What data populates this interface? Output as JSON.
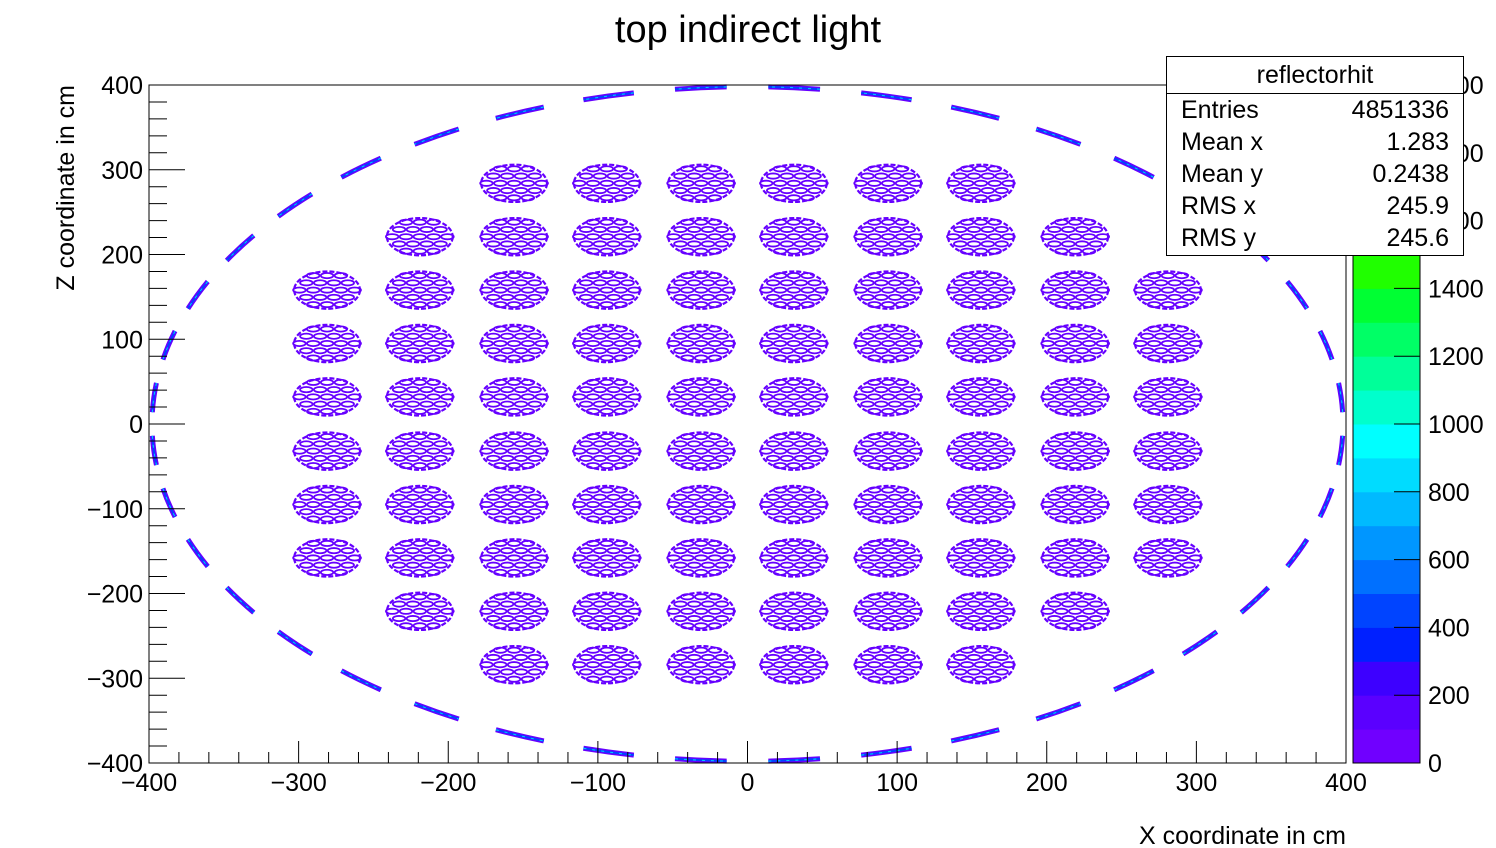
{
  "chart_data": {
    "type": "heatmap",
    "title": "top indirect light",
    "xlabel": "X coordinate in cm",
    "ylabel": "Z coordinate in cm",
    "xlim": [
      -400,
      400
    ],
    "ylim": [
      -400,
      400
    ],
    "x_ticks": [
      -400,
      -300,
      -200,
      -100,
      0,
      100,
      200,
      300,
      400
    ],
    "y_ticks": [
      -400,
      -300,
      -200,
      -100,
      0,
      100,
      200,
      300,
      400
    ],
    "x_tick_labels": [
      "−400",
      "−300",
      "−200",
      "−100",
      "0",
      "100",
      "200",
      "300",
      "400"
    ],
    "y_tick_labels": [
      "−400",
      "−300",
      "−200",
      "−100",
      "0",
      "100",
      "200",
      "300",
      "400"
    ],
    "pmt_rows": [
      {
        "z": 284,
        "x": [
          -156,
          -94,
          -31,
          31,
          94,
          156
        ]
      },
      {
        "z": 221,
        "x": [
          -219,
          -156,
          -94,
          -31,
          31,
          94,
          156,
          219
        ]
      },
      {
        "z": 158,
        "x": [
          -281,
          -219,
          -156,
          -94,
          -31,
          31,
          94,
          156,
          219,
          281
        ]
      },
      {
        "z": 95,
        "x": [
          -281,
          -219,
          -156,
          -94,
          -31,
          31,
          94,
          156,
          219,
          281
        ]
      },
      {
        "z": 32,
        "x": [
          -281,
          -219,
          -156,
          -94,
          -31,
          31,
          94,
          156,
          219,
          281
        ]
      },
      {
        "z": -32,
        "x": [
          -281,
          -219,
          -156,
          -94,
          -31,
          31,
          94,
          156,
          219,
          281
        ]
      },
      {
        "z": -95,
        "x": [
          -281,
          -219,
          -156,
          -94,
          -31,
          31,
          94,
          156,
          219,
          281
        ]
      },
      {
        "z": -158,
        "x": [
          -281,
          -219,
          -156,
          -94,
          -31,
          31,
          94,
          156,
          219,
          281
        ]
      },
      {
        "z": -221,
        "x": [
          -219,
          -156,
          -94,
          -31,
          31,
          94,
          156,
          219
        ]
      },
      {
        "z": -284,
        "x": [
          -156,
          -94,
          -31,
          31,
          94,
          156
        ]
      }
    ],
    "pmt_diameter_cm": 44,
    "rim_radius_cm": 398,
    "rim_segments": 40,
    "colorbar": {
      "min": 0,
      "max": 2000,
      "tick_values": [
        0,
        200,
        400,
        600,
        800,
        1000,
        1200,
        1400
      ],
      "tick_labels": [
        "0",
        "200",
        "400",
        "600",
        "800",
        "1000",
        "1200",
        "1400"
      ],
      "partial_tick_labels": [
        "1600",
        "1800",
        "2000"
      ],
      "colors": [
        "#7000ff",
        "#5a00ff",
        "#3d00ff",
        "#0020ff",
        "#0044ff",
        "#0070ff",
        "#0096ff",
        "#00baff",
        "#00dcff",
        "#00ffff",
        "#00ffcc",
        "#00ff99",
        "#00ff66",
        "#00ff33",
        "#20ff00",
        "#60ff00",
        "#a0ff00",
        "#ccff00",
        "#e8ff00",
        "#ffff00"
      ]
    },
    "stats": {
      "name": "reflectorhit",
      "rows": [
        {
          "label": "Entries",
          "value": "4851336"
        },
        {
          "label": "Mean x",
          "value": "1.283"
        },
        {
          "label": "Mean y",
          "value": "0.2438"
        },
        {
          "label": "RMS x",
          "value": "245.9"
        },
        {
          "label": "RMS y",
          "value": "245.6"
        }
      ]
    },
    "colors": {
      "hit_main": "#6600ff",
      "hit_edge": "#0044ff",
      "hit_hot": "#00ccff",
      "frame": "#000000"
    }
  }
}
